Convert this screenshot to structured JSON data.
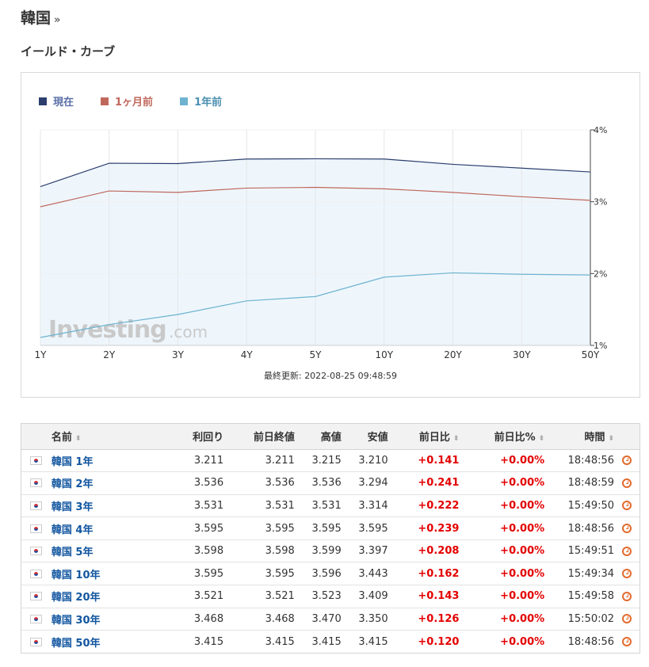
{
  "header": {
    "title": "韓国",
    "raquo": "»",
    "section_title": "イールド・カーブ"
  },
  "colors": {
    "current": "#2c3e6e",
    "one_month": "#c0675c",
    "one_year": "#6db3d0",
    "positive": "#e30000",
    "link": "#1256a0"
  },
  "chart_data": {
    "type": "line",
    "categories": [
      "1Y",
      "2Y",
      "3Y",
      "4Y",
      "5Y",
      "10Y",
      "20Y",
      "30Y",
      "50Y"
    ],
    "series": [
      {
        "name": "現在",
        "values": [
          3.211,
          3.536,
          3.531,
          3.595,
          3.598,
          3.595,
          3.521,
          3.468,
          3.415
        ]
      },
      {
        "name": "1ヶ月前",
        "values": [
          2.93,
          3.15,
          3.13,
          3.19,
          3.2,
          3.18,
          3.13,
          3.07,
          3.02
        ]
      },
      {
        "name": "1年前",
        "values": [
          1.11,
          1.29,
          1.43,
          1.62,
          1.68,
          1.95,
          2.01,
          1.99,
          1.98
        ]
      }
    ],
    "y_ticks": [
      "4%",
      "3%",
      "2%",
      "1%"
    ],
    "ylim": [
      1,
      4
    ],
    "watermark_main": "Investing",
    "watermark_suffix": ".com",
    "update_label": "最終更新:",
    "update_time": "2022-08-25 09:48:59"
  },
  "table": {
    "headers": {
      "name": "名前",
      "yield": "利回り",
      "prev_close": "前日終値",
      "high": "高値",
      "low": "安値",
      "change": "前日比",
      "change_pct": "前日比%",
      "time": "時間"
    },
    "sort_glyph": "⬍",
    "rows": [
      {
        "name": "韓国 1年",
        "yield": "3.211",
        "prev": "3.211",
        "high": "3.215",
        "low": "3.210",
        "chg": "+0.141",
        "pct": "+0.00%",
        "time": "18:48:56"
      },
      {
        "name": "韓国 2年",
        "yield": "3.536",
        "prev": "3.536",
        "high": "3.536",
        "low": "3.294",
        "chg": "+0.241",
        "pct": "+0.00%",
        "time": "18:48:59"
      },
      {
        "name": "韓国 3年",
        "yield": "3.531",
        "prev": "3.531",
        "high": "3.531",
        "low": "3.314",
        "chg": "+0.222",
        "pct": "+0.00%",
        "time": "15:49:50"
      },
      {
        "name": "韓国 4年",
        "yield": "3.595",
        "prev": "3.595",
        "high": "3.595",
        "low": "3.595",
        "chg": "+0.239",
        "pct": "+0.00%",
        "time": "18:48:56"
      },
      {
        "name": "韓国 5年",
        "yield": "3.598",
        "prev": "3.598",
        "high": "3.599",
        "low": "3.397",
        "chg": "+0.208",
        "pct": "+0.00%",
        "time": "15:49:51"
      },
      {
        "name": "韓国 10年",
        "yield": "3.595",
        "prev": "3.595",
        "high": "3.596",
        "low": "3.443",
        "chg": "+0.162",
        "pct": "+0.00%",
        "time": "15:49:34"
      },
      {
        "name": "韓国 20年",
        "yield": "3.521",
        "prev": "3.521",
        "high": "3.523",
        "low": "3.409",
        "chg": "+0.143",
        "pct": "+0.00%",
        "time": "15:49:58"
      },
      {
        "name": "韓国 30年",
        "yield": "3.468",
        "prev": "3.468",
        "high": "3.470",
        "low": "3.350",
        "chg": "+0.126",
        "pct": "+0.00%",
        "time": "15:50:02"
      },
      {
        "name": "韓国 50年",
        "yield": "3.415",
        "prev": "3.415",
        "high": "3.415",
        "low": "3.415",
        "chg": "+0.120",
        "pct": "+0.00%",
        "time": "18:48:56"
      }
    ]
  }
}
